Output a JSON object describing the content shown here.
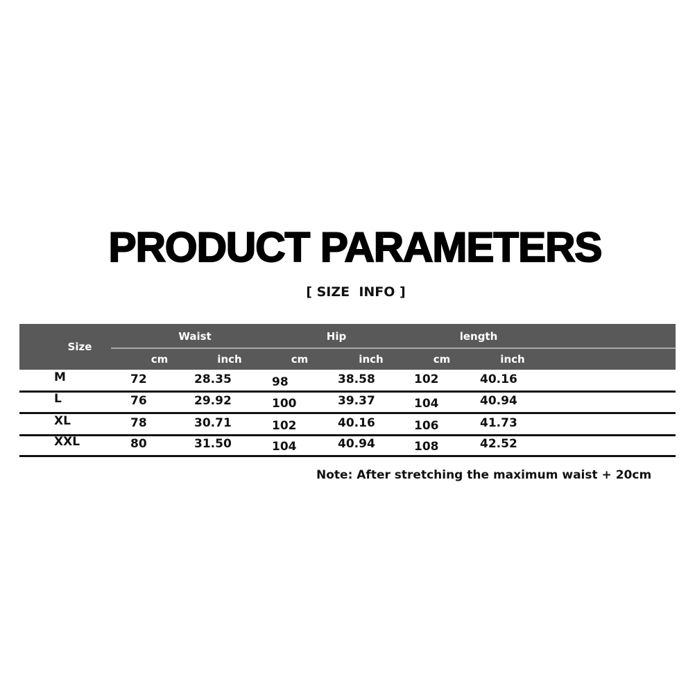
{
  "title": "PRODUCT PARAMETERS",
  "subtitle": "[ SIZE  INFO ]",
  "table": {
    "header_color": "#595959",
    "size_label": "Size",
    "groups": [
      "Waist",
      "Hip",
      "length"
    ],
    "units": [
      "cm",
      "inch",
      "cm",
      "inch",
      "cm",
      "inch"
    ],
    "rows": [
      [
        "M",
        "72",
        "28.35",
        "98",
        "38.58",
        "102",
        "40.16"
      ],
      [
        "L",
        "76",
        "29.92",
        "100",
        "39.37",
        "104",
        "40.94"
      ],
      [
        "XL",
        "78",
        "30.71",
        "102",
        "40.16",
        "106",
        "41.73"
      ],
      [
        "XXL",
        "80",
        "31.50",
        "104",
        "40.94",
        "108",
        "42.52"
      ]
    ]
  },
  "note": "Note: After stretching the maximum waist + 20cm"
}
